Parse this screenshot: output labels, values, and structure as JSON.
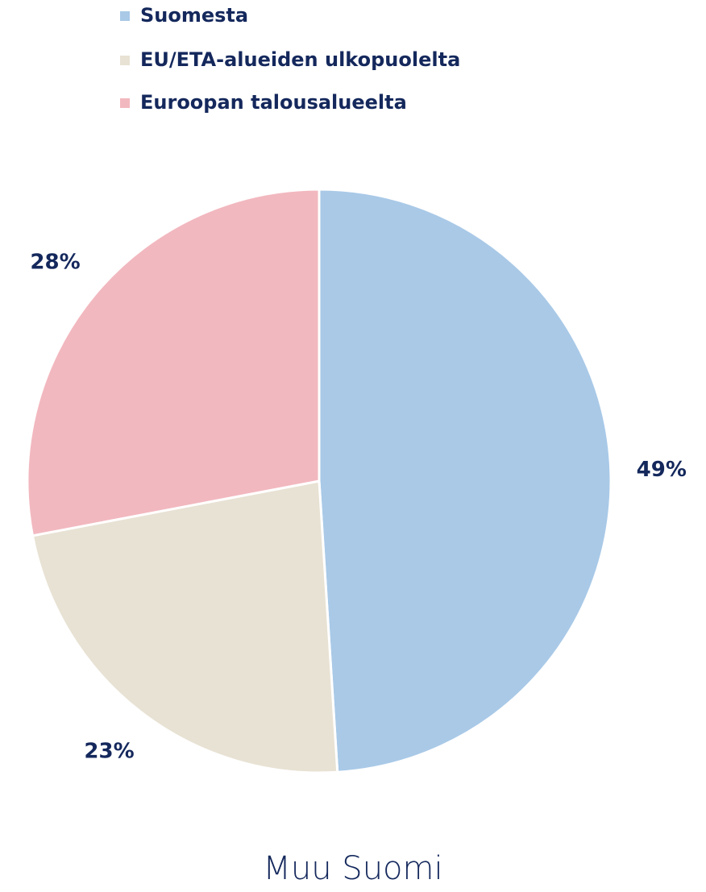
{
  "chart_data": {
    "type": "pie",
    "title": "Muu Suomi",
    "categories": [
      "Suomesta",
      "EU/ETA-alueiden ulkopuolelta",
      "Euroopan talousalueelta"
    ],
    "values": [
      49,
      23,
      28
    ],
    "value_labels": [
      "49%",
      "23%",
      "28%"
    ],
    "colors": [
      "#a9c9e7",
      "#e8e2d4",
      "#f2b8bf"
    ],
    "legend": "top"
  }
}
